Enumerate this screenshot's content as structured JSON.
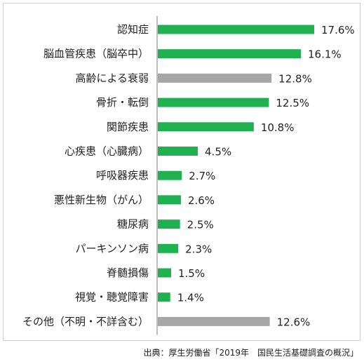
{
  "chart_data": {
    "type": "bar",
    "orientation": "horizontal",
    "categories": [
      "認知症",
      "脳血管疾患（脳卒中）",
      "高齢による衰弱",
      "骨折・転倒",
      "関節疾患",
      "心疾患（心臓病）",
      "呼吸器疾患",
      "悪性新生物（がん）",
      "糖尿病",
      "パーキンソン病",
      "脊髄損傷",
      "視覚・聴覚障害",
      "その他（不明・不詳含む）"
    ],
    "values": [
      17.6,
      16.1,
      12.8,
      12.5,
      10.8,
      4.5,
      2.7,
      2.6,
      2.5,
      2.3,
      1.5,
      1.4,
      12.6
    ],
    "value_labels": [
      "17.6%",
      "16.1%",
      "12.8%",
      "12.5%",
      "10.8%",
      "4.5%",
      "2.7%",
      "2.6%",
      "2.5%",
      "2.3%",
      "1.5%",
      "1.4%",
      "12.6%"
    ],
    "bar_colors": [
      "#1fb14f",
      "#1fb14f",
      "#a6a6a6",
      "#1fb14f",
      "#1fb14f",
      "#1fb14f",
      "#1fb14f",
      "#1fb14f",
      "#1fb14f",
      "#1fb14f",
      "#1fb14f",
      "#1fb14f",
      "#a6a6a6"
    ],
    "xlim": [
      0,
      17.6
    ],
    "grid": false
  },
  "source": "出典：厚生労働省「2019年　国民生活基礎調査の概況」",
  "colors": {
    "green_bar": "#1fb14f",
    "gray_bar": "#a6a6a6",
    "axis": "#7f7f7f"
  }
}
